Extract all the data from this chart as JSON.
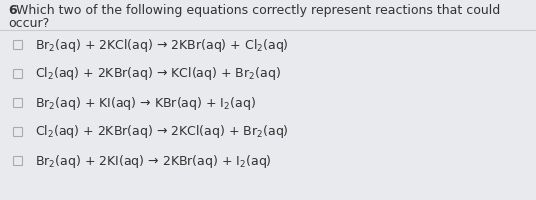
{
  "background_color": "#e8eaed",
  "title_bold": "6",
  "title_text": " Which two of the following equations correctly represent reactions that could occur?",
  "equations": [
    "Br$_2$(aq) + 2KCl(aq) → 2KBr(aq) + Cl$_2$(aq)",
    "Cl$_2$(aq) + 2KBr(aq) → KCl(aq) + Br$_2$(aq)",
    "Br$_2$(aq) + KI(aq) → KBr(aq) + I$_2$(aq)",
    "Cl$_2$(aq) + 2KBr(aq) → 2KCl(aq) + Br$_2$(aq)",
    "Br$_2$(aq) + 2KI(aq) → 2KBr(aq) + I$_2$(aq)"
  ],
  "text_color": "#333333",
  "checkbox_edge_color": "#aaaaaa",
  "checkbox_face_color": "#e8eaed",
  "font_size_title": 9.0,
  "font_size_eq": 9.0,
  "divider_color": "#c8cace",
  "fig_width": 5.36,
  "fig_height": 2.0,
  "dpi": 100
}
